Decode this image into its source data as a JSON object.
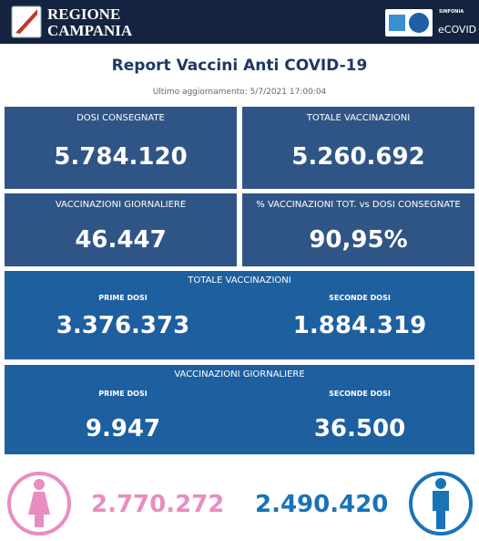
{
  "header": {
    "region": [
      "REGIONE",
      "CAMPANIA"
    ],
    "brand_small": "SINFONIA",
    "brand": "eCOVID"
  },
  "title": "Report Vaccini Anti COVID-19",
  "updated": "Ultimo aggiornamento: 5/7/2021 17:00:04",
  "cards": [
    {
      "label": "DOSI CONSEGNATE",
      "value": "5.784.120"
    },
    {
      "label": "TOTALE VACCINAZIONI",
      "value": "5.260.692"
    },
    {
      "label": "VACCINAZIONI GIORNALIERE",
      "value": "46.447"
    },
    {
      "label": "% VACCINAZIONI TOT. vs DOSI CONSEGNATE",
      "value": "90,95%"
    }
  ],
  "sections": [
    {
      "title": "TOTALE VACCINAZIONI",
      "items": [
        {
          "label": "PRIME DOSI",
          "value": "3.376.373"
        },
        {
          "label": "SECONDE DOSI",
          "value": "1.884.319"
        }
      ]
    },
    {
      "title": "VACCINAZIONI GIORNALIERE",
      "items": [
        {
          "label": "PRIME DOSI",
          "value": "9.947"
        },
        {
          "label": "SECONDE DOSI",
          "value": "36.500"
        }
      ]
    }
  ],
  "gender": {
    "female": "2.770.272",
    "male": "2.490.420"
  }
}
